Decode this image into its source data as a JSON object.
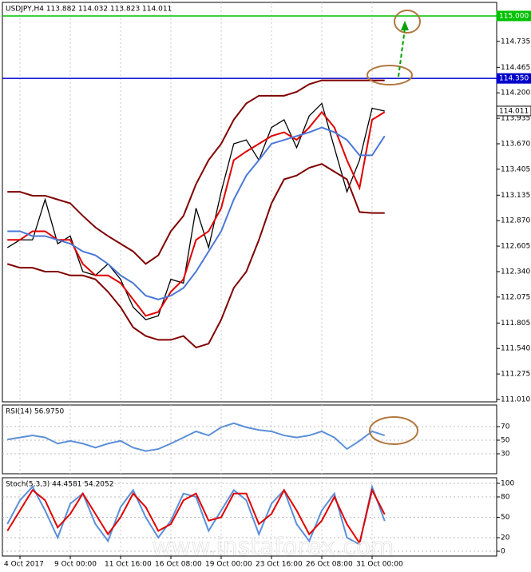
{
  "chart_data": [
    {
      "type": "line",
      "title": "USDJPY,H4  113.882 114.032 113.823 114.011",
      "ylim": [
        110.985,
        115.141
      ],
      "yticks": [
        {
          "value": 115.0,
          "label": "115.000"
        },
        {
          "value": 114.735,
          "label": "114.735"
        },
        {
          "value": 114.465,
          "label": "114.465"
        },
        {
          "value": 114.2,
          "label": "114.200"
        },
        {
          "value": 113.935,
          "label": "113.935"
        },
        {
          "value": 113.67,
          "label": "113.670"
        },
        {
          "value": 113.405,
          "label": "113.405"
        },
        {
          "value": 113.135,
          "label": "113.135"
        },
        {
          "value": 112.87,
          "label": "112.870"
        },
        {
          "value": 112.605,
          "label": "112.605"
        },
        {
          "value": 112.34,
          "label": "112.340"
        },
        {
          "value": 112.075,
          "label": "112.075"
        },
        {
          "value": 111.805,
          "label": "111.805"
        },
        {
          "value": 111.54,
          "label": "111.540"
        },
        {
          "value": 111.275,
          "label": "111.275"
        },
        {
          "value": 111.01,
          "label": "111.010"
        }
      ],
      "hlines": [
        {
          "value": 115.0,
          "label": "115.000",
          "color": "#00c000"
        },
        {
          "value": 114.35,
          "label": "114.350",
          "color": "#0000cc"
        },
        {
          "value": 114.011,
          "label": "114.011",
          "color": "#000000"
        }
      ],
      "series": [
        {
          "name": "Price",
          "color": "#000000",
          "values": [
            112.59,
            112.67,
            112.67,
            113.09,
            112.63,
            112.71,
            112.34,
            112.3,
            112.42,
            112.26,
            111.97,
            111.84,
            111.88,
            112.26,
            112.22,
            113.0,
            112.59,
            113.17,
            113.67,
            113.71,
            113.5,
            113.84,
            113.92,
            113.63,
            113.96,
            114.09,
            113.63,
            113.17,
            113.5,
            114.04,
            114.011
          ]
        },
        {
          "name": "BB Upper",
          "color": "#800000",
          "values": [
            113.17,
            113.17,
            113.13,
            113.13,
            113.09,
            113.05,
            112.92,
            112.8,
            112.71,
            112.63,
            112.55,
            112.42,
            112.51,
            112.76,
            112.92,
            113.25,
            113.5,
            113.67,
            113.92,
            114.09,
            114.17,
            114.17,
            114.17,
            114.21,
            114.29,
            114.33,
            114.33,
            114.33,
            114.33,
            114.33,
            114.33
          ]
        },
        {
          "name": "BB Lower",
          "color": "#800000",
          "values": [
            112.42,
            112.38,
            112.38,
            112.34,
            112.34,
            112.3,
            112.3,
            112.26,
            112.13,
            111.97,
            111.76,
            111.67,
            111.63,
            111.63,
            111.67,
            111.55,
            111.59,
            111.84,
            112.17,
            112.34,
            112.67,
            113.05,
            113.3,
            113.34,
            113.42,
            113.46,
            113.38,
            113.3,
            112.96,
            112.95,
            112.95
          ]
        },
        {
          "name": "MA Fast",
          "color": "#e00000",
          "values": [
            112.67,
            112.67,
            112.76,
            112.76,
            112.67,
            112.67,
            112.42,
            112.3,
            112.3,
            112.22,
            112.05,
            111.88,
            111.92,
            112.13,
            112.26,
            112.67,
            112.76,
            113.0,
            113.5,
            113.59,
            113.67,
            113.75,
            113.79,
            113.71,
            113.84,
            114.0,
            113.84,
            113.5,
            113.21,
            113.92,
            114.0
          ]
        },
        {
          "name": "MA Slow",
          "color": "#4a78d8",
          "values": [
            112.76,
            112.76,
            112.71,
            112.71,
            112.67,
            112.63,
            112.55,
            112.51,
            112.42,
            112.3,
            112.22,
            112.09,
            112.05,
            112.09,
            112.17,
            112.34,
            112.55,
            112.76,
            113.09,
            113.34,
            113.5,
            113.67,
            113.71,
            113.75,
            113.79,
            113.84,
            113.79,
            113.71,
            113.55,
            113.55,
            113.75
          ]
        }
      ]
    },
    {
      "type": "line",
      "title": "RSI(14) 56.9750",
      "ylim": [
        0,
        100
      ],
      "yticks": [
        70,
        50,
        30
      ],
      "series": [
        {
          "name": "RSI",
          "color": "#5b8fd8",
          "values": [
            51,
            54,
            57,
            54,
            45,
            49,
            45,
            39,
            45,
            49,
            39,
            34,
            37,
            45,
            54,
            63,
            57,
            69,
            75,
            69,
            65,
            63,
            57,
            54,
            57,
            63,
            54,
            37,
            49,
            63,
            56.975
          ]
        }
      ]
    },
    {
      "type": "line",
      "title": "Stoch(5,3,3) 44.4581 54.2052",
      "ylim": [
        0,
        100
      ],
      "yticks": [
        100,
        80,
        50,
        20,
        0
      ],
      "categories": [
        null,
        "4 Oct 2017",
        null,
        null,
        null,
        "9 Oct 00:00",
        null,
        null,
        null,
        "11 Oct 16:00",
        null,
        null,
        null,
        "16 Oct 08:00",
        null,
        null,
        null,
        "19 Oct 00:00",
        null,
        null,
        null,
        "23 Oct 16:00",
        null,
        null,
        null,
        "26 Oct 08:00",
        null,
        null,
        null,
        "31 Oct 00:00",
        null
      ],
      "series": [
        {
          "name": "Main",
          "color": "#5b8fd8",
          "values": [
            40,
            75,
            95,
            60,
            20,
            70,
            85,
            40,
            15,
            65,
            90,
            50,
            20,
            45,
            85,
            80,
            30,
            60,
            90,
            75,
            25,
            70,
            90,
            40,
            15,
            60,
            85,
            20,
            10,
            95,
            44.4581
          ]
        },
        {
          "name": "Signal",
          "color": "#e00000",
          "values": [
            30,
            60,
            90,
            75,
            35,
            55,
            85,
            55,
            25,
            50,
            85,
            65,
            30,
            40,
            75,
            85,
            45,
            50,
            85,
            85,
            40,
            55,
            90,
            60,
            25,
            45,
            80,
            40,
            12,
            90,
            54.2052
          ]
        }
      ]
    }
  ],
  "watermark": "www.instaforex.com"
}
